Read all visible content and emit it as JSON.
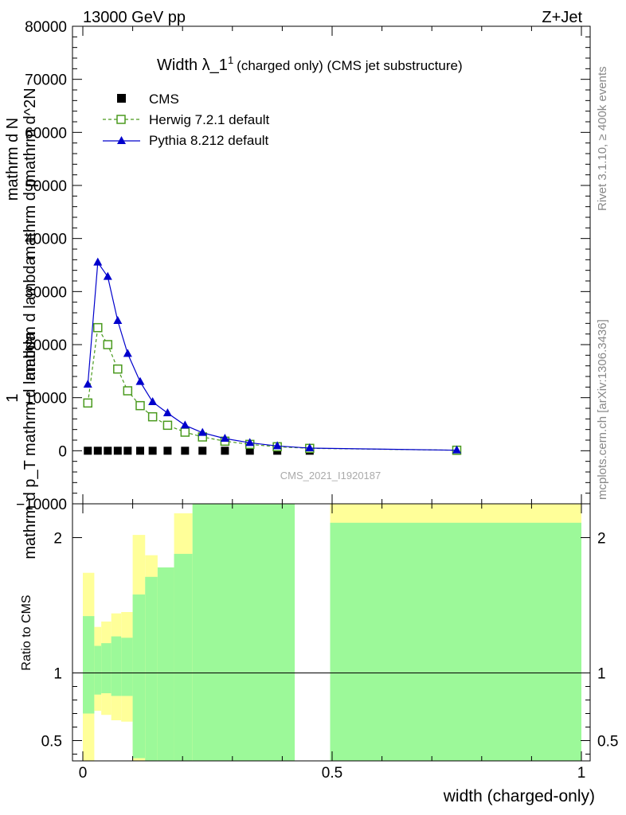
{
  "header": {
    "left": "13000 GeV pp",
    "right": "Z+Jet"
  },
  "side_labels": {
    "rivet": "Rivet 3.1.10, ≥ 400k events",
    "mcplots": "mcplots.cern.ch [arXiv:1306.3436]"
  },
  "watermark": "CMS_2021_I1920187",
  "chart_data": [
    {
      "type": "line",
      "title_main": "Width λ_1",
      "title_sup": "1",
      "title_rest": "(charged only) (CMS jet substructure)",
      "ylabel_garbled": "mathrm d^2N / mathrm d p_T mathrm d lambda",
      "ylabel_segments": [
        "1",
        "mathrm d N",
        "mathrm d^2N",
        "mathrm d p",
        "mathrm d lambda",
        "mathrm d p_T mathrm d lambda"
      ],
      "xlim": [
        0,
        1
      ],
      "ylim": [
        -10000,
        80000
      ],
      "yticks": [
        -10000,
        0,
        10000,
        20000,
        30000,
        40000,
        50000,
        60000,
        70000,
        80000
      ],
      "ytick_labels": [
        "−10000",
        "0",
        "10000",
        "20000",
        "30000",
        "40000",
        "50000",
        "60000",
        "70000",
        "80000"
      ],
      "legend": {
        "position": "top-left",
        "entries": [
          "CMS",
          "Herwig 7.2.1 default",
          "Pythia 8.212 default"
        ]
      },
      "series": [
        {
          "name": "CMS",
          "color": "#000000",
          "marker": "square-filled",
          "x": [
            0.01,
            0.03,
            0.05,
            0.07,
            0.09,
            0.115,
            0.14,
            0.17,
            0.205,
            0.24,
            0.285,
            0.335,
            0.39,
            0.455,
            0.75
          ],
          "y": [
            0,
            0,
            0,
            0,
            0,
            0,
            0,
            0,
            0,
            0,
            0,
            0,
            0,
            0,
            0
          ]
        },
        {
          "name": "Herwig 7.2.1 default",
          "color": "#4a9a1e",
          "marker": "square-open",
          "dashed": true,
          "x": [
            0.01,
            0.03,
            0.05,
            0.07,
            0.09,
            0.115,
            0.14,
            0.17,
            0.205,
            0.24,
            0.285,
            0.335,
            0.39,
            0.455,
            0.75
          ],
          "y": [
            9000,
            23200,
            20000,
            15400,
            11300,
            8500,
            6400,
            4800,
            3500,
            2600,
            1800,
            1200,
            750,
            450,
            100
          ]
        },
        {
          "name": "Pythia 8.212 default",
          "color": "#0000cc",
          "marker": "triangle-filled",
          "x": [
            0.01,
            0.03,
            0.05,
            0.07,
            0.09,
            0.115,
            0.14,
            0.17,
            0.205,
            0.24,
            0.285,
            0.335,
            0.39,
            0.455,
            0.75
          ],
          "y": [
            12500,
            35500,
            32800,
            24500,
            18300,
            13000,
            9200,
            7100,
            4800,
            3400,
            2300,
            1500,
            900,
            500,
            100
          ]
        }
      ]
    },
    {
      "type": "area",
      "ylabel": "Ratio to CMS",
      "xlabel": "width (charged-only)",
      "xlim": [
        0,
        1
      ],
      "ylim": [
        0.35,
        2.25
      ],
      "xticks": [
        0,
        0.5,
        1
      ],
      "xtick_labels": [
        "0",
        "0.5",
        "1"
      ],
      "yticks": [
        0.5,
        1,
        2
      ],
      "ytick_labels": [
        "0.5",
        "1",
        "2"
      ],
      "reference_line": 1,
      "uncertainty_bands": {
        "colors": {
          "inner": "#9cf999",
          "outer": "#ffff99"
        },
        "bins": [
          {
            "x0": 0.0,
            "x1": 0.023,
            "inner_lo": 0.7,
            "inner_hi": 1.42,
            "outer_lo": 0.35,
            "outer_hi": 1.74
          },
          {
            "x0": 0.023,
            "x1": 0.037,
            "inner_lo": 0.84,
            "inner_hi": 1.2,
            "outer_lo": 0.72,
            "outer_hi": 1.34
          },
          {
            "x0": 0.037,
            "x1": 0.057,
            "inner_lo": 0.85,
            "inner_hi": 1.22,
            "outer_lo": 0.69,
            "outer_hi": 1.38
          },
          {
            "x0": 0.057,
            "x1": 0.077,
            "inner_lo": 0.83,
            "inner_hi": 1.27,
            "outer_lo": 0.65,
            "outer_hi": 1.44
          },
          {
            "x0": 0.077,
            "x1": 0.1,
            "inner_lo": 0.83,
            "inner_hi": 1.26,
            "outer_lo": 0.64,
            "outer_hi": 1.45
          },
          {
            "x0": 0.1,
            "x1": 0.125,
            "inner_lo": 0.37,
            "inner_hi": 1.58,
            "outer_lo": 0.35,
            "outer_hi": 2.02
          },
          {
            "x0": 0.125,
            "x1": 0.15,
            "inner_lo": 0.35,
            "inner_hi": 1.71,
            "outer_lo": 0.35,
            "outer_hi": 1.87
          },
          {
            "x0": 0.15,
            "x1": 0.183,
            "inner_lo": 0.35,
            "inner_hi": 1.78,
            "outer_lo": 0.35,
            "outer_hi": 1.72
          },
          {
            "x0": 0.183,
            "x1": 0.22,
            "inner_lo": 0.35,
            "inner_hi": 1.88,
            "outer_lo": 0.35,
            "outer_hi": 2.18
          },
          {
            "x0": 0.22,
            "x1": 0.425,
            "inner_lo": 0.35,
            "inner_hi": 2.25,
            "outer_lo": 0.35,
            "outer_hi": 2.25
          },
          {
            "x0": 0.496,
            "x1": 1.0,
            "inner_lo": 0.35,
            "inner_hi": 2.11,
            "outer_lo": 0.35,
            "outer_hi": 2.25
          }
        ]
      }
    }
  ]
}
